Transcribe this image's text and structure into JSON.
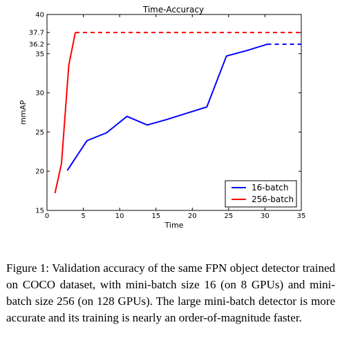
{
  "chart_data": {
    "type": "line",
    "title": "Time-Accuracy",
    "xlabel": "Time",
    "ylabel": "mmAP",
    "xlim": [
      0,
      35
    ],
    "ylim": [
      15,
      40
    ],
    "xticks": [
      "0",
      "5",
      "10",
      "15",
      "20",
      "25",
      "30",
      "35"
    ],
    "yticks": [
      "15",
      "20",
      "25",
      "30",
      "35",
      "40"
    ],
    "extra_yticks": [
      "36.2",
      "37.7"
    ],
    "grid": false,
    "legend_position": "bottom-right",
    "series": [
      {
        "name": "16-batch",
        "color": "#0000ff",
        "points": [
          [
            2.8,
            20.1
          ],
          [
            5.5,
            23.9
          ],
          [
            8.2,
            24.9
          ],
          [
            11.0,
            27.0
          ],
          [
            13.8,
            25.9
          ],
          [
            16.5,
            26.6
          ],
          [
            22.0,
            28.2
          ],
          [
            24.7,
            34.7
          ],
          [
            27.5,
            35.4
          ],
          [
            30.3,
            36.2
          ]
        ],
        "dashed_extension": [
          [
            30.3,
            36.2
          ],
          [
            35.0,
            36.2
          ]
        ]
      },
      {
        "name": "256-batch",
        "color": "#ff0000",
        "points": [
          [
            1.1,
            17.2
          ],
          [
            2.0,
            21.0
          ],
          [
            3.0,
            33.5
          ],
          [
            3.9,
            37.7
          ]
        ],
        "dashed_extension": [
          [
            3.9,
            37.7
          ],
          [
            35.0,
            37.7
          ]
        ]
      }
    ]
  },
  "caption": {
    "text": "Figure 1: Validation accuracy of the same FPN object detector trained on COCO dataset, with mini-batch size 16 (on 8 GPUs) and mini-batch size 256 (on 128 GPUs). The large mini-batch detector is more accurate and its training is nearly an order-of-magnitude faster."
  }
}
